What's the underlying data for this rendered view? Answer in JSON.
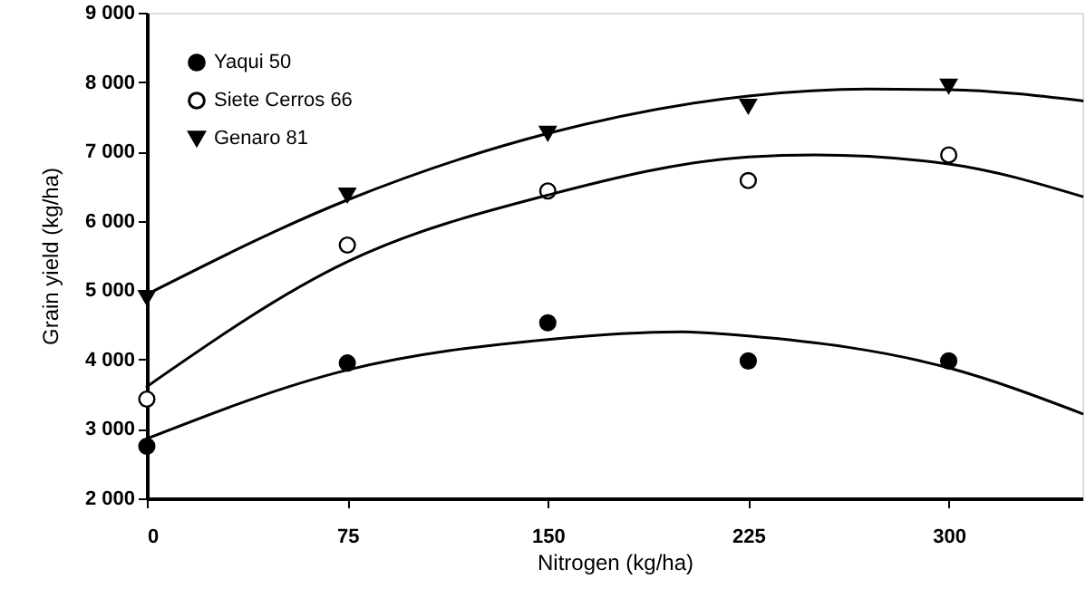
{
  "chart_data": {
    "type": "scatter",
    "xlabel": "Nitrogen (kg/ha)",
    "ylabel": "Grain yield (kg/ha)",
    "x": [
      0,
      75,
      150,
      225,
      300
    ],
    "series": [
      {
        "name": "Yaqui 50",
        "color": "#000000",
        "marker": "circle",
        "values": [
          2750,
          3950,
          4530,
          3980,
          3980
        ]
      },
      {
        "name": "Siete Cerros  66",
        "color": "#ffffff",
        "marker": "circle",
        "values": [
          3430,
          5650,
          6430,
          6580,
          6950
        ]
      },
      {
        "name": "Genaro 81",
        "color": "#000000",
        "marker": "triangle",
        "values": [
          4890,
          6370,
          7260,
          7650,
          7940
        ]
      },
      {
        "type": "line",
        "color": "#000000",
        "x": [
          0,
          75,
          150,
          200,
          225,
          300,
          350
        ],
        "values": [
          2860,
          3850,
          4290,
          4400,
          4340,
          3880,
          3220
        ]
      },
      {
        "type": "line",
        "color": "#000000",
        "x": [
          0,
          75,
          150,
          225,
          250,
          300,
          350
        ],
        "values": [
          3610,
          5410,
          6370,
          6920,
          6950,
          6820,
          6350
        ]
      },
      {
        "type": "line",
        "color": "#000000",
        "x": [
          0,
          75,
          150,
          225,
          270,
          300,
          350
        ],
        "values": [
          4940,
          6300,
          7260,
          7800,
          7900,
          7890,
          7730
        ]
      }
    ],
    "xlim": [
      0,
      350
    ],
    "xticks": [
      0,
      75,
      150,
      225,
      300
    ],
    "ylim": [
      2000,
      9000
    ],
    "yticks": [
      {
        "value": 2000,
        "label": "2 000"
      },
      {
        "value": 3000,
        "label": "3 000"
      },
      {
        "value": 4000,
        "label": "4 000"
      },
      {
        "value": 5000,
        "label": "5 000"
      },
      {
        "value": 6000,
        "label": "6 000"
      },
      {
        "value": 7000,
        "label": "7 000"
      },
      {
        "value": 8000,
        "label": "8 000"
      },
      {
        "value": 9000,
        "label": "9 000"
      }
    ],
    "grid": false,
    "legend": "top left"
  }
}
